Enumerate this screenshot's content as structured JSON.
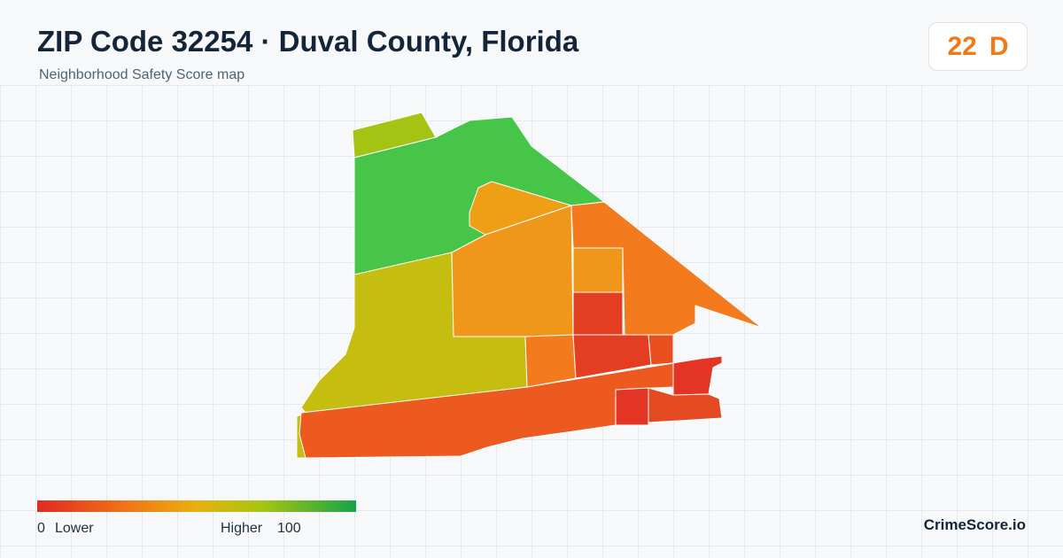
{
  "header": {
    "title": "ZIP Code 32254 · Duval County, Florida",
    "subtitle": "Neighborhood Safety Score map"
  },
  "score": {
    "value": 22,
    "grade": "D"
  },
  "legend": {
    "min": 0,
    "min_label": "Lower",
    "max_label": "Higher",
    "max": 100
  },
  "brand": "CrimeScore.io"
}
